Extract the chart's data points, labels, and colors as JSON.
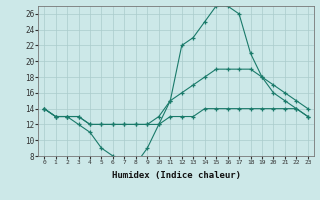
{
  "xlabel": "Humidex (Indice chaleur)",
  "x": [
    0,
    1,
    2,
    3,
    4,
    5,
    6,
    7,
    8,
    9,
    10,
    11,
    12,
    13,
    14,
    15,
    16,
    17,
    18,
    19,
    20,
    21,
    22,
    23
  ],
  "line_max": [
    14,
    13,
    13,
    12,
    11,
    9,
    8,
    7,
    7,
    9,
    12,
    15,
    22,
    23,
    25,
    27,
    27,
    26,
    21,
    18,
    16,
    15,
    14,
    13
  ],
  "line_diag": [
    14,
    13,
    13,
    13,
    12,
    12,
    12,
    12,
    12,
    12,
    13,
    15,
    16,
    17,
    18,
    19,
    19,
    19,
    19,
    18,
    17,
    16,
    15,
    14
  ],
  "line_flat": [
    14,
    13,
    13,
    13,
    12,
    12,
    12,
    12,
    12,
    12,
    12,
    13,
    13,
    13,
    14,
    14,
    14,
    14,
    14,
    14,
    14,
    14,
    14,
    13
  ],
  "color": "#1a7a6a",
  "bg_color": "#cce8e8",
  "grid_color": "#aacccc",
  "ylim_min": 8,
  "ylim_max": 27,
  "xlim_min": -0.5,
  "xlim_max": 23.5,
  "yticks": [
    8,
    10,
    12,
    14,
    16,
    18,
    20,
    22,
    24,
    26
  ],
  "ytick_labels": [
    "8",
    "10",
    "12",
    "14",
    "16",
    "18",
    "20",
    "22",
    "24",
    "26"
  ]
}
